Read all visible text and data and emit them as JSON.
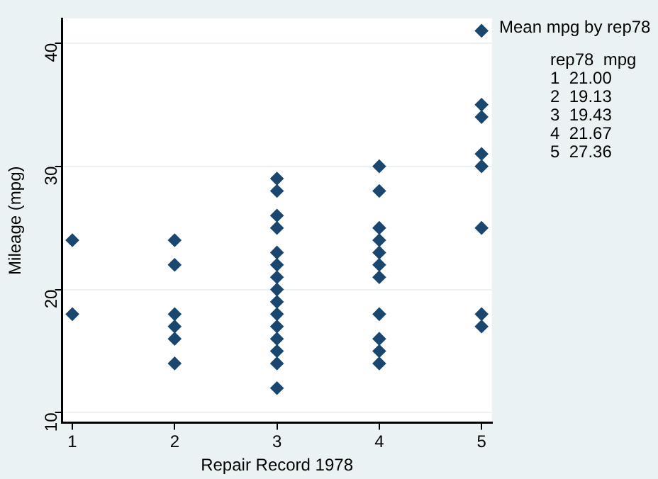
{
  "chart_data": {
    "type": "scatter",
    "xlabel": "Repair Record 1978",
    "ylabel": "Mileage (mpg)",
    "series": [
      {
        "color": "#1a476f",
        "x": [
          1,
          1,
          2,
          2,
          2,
          2,
          2,
          2,
          3,
          3,
          3,
          3,
          3,
          3,
          3,
          3,
          3,
          3,
          3,
          3,
          3,
          3,
          3,
          4,
          4,
          4,
          4,
          4,
          4,
          4,
          4,
          4,
          4,
          4,
          5,
          5,
          5,
          5,
          5,
          5,
          5,
          5
        ],
        "values": [
          24,
          18,
          24,
          22,
          18,
          17,
          16,
          14,
          29,
          28,
          26,
          25,
          23,
          22,
          21,
          20,
          19,
          18,
          17,
          16,
          15,
          14,
          12,
          30,
          28,
          25,
          24,
          23,
          22,
          21,
          18,
          16,
          15,
          14,
          41,
          35,
          34,
          31,
          30,
          25,
          18,
          17
        ]
      }
    ],
    "marker": "diamond",
    "xlim": [
      0.9,
      5.1
    ],
    "xticks": [
      1,
      2,
      3,
      4,
      5
    ],
    "ylim": [
      9.2,
      42
    ],
    "yticks": [
      10,
      20,
      30,
      40
    ],
    "grid": "y",
    "annotations": [
      "Mean mpg by rep78",
      "rep78  mpg",
      "1  21.00",
      "2  19.13",
      "3  19.43",
      "4  21.67",
      "5  27.36"
    ]
  }
}
